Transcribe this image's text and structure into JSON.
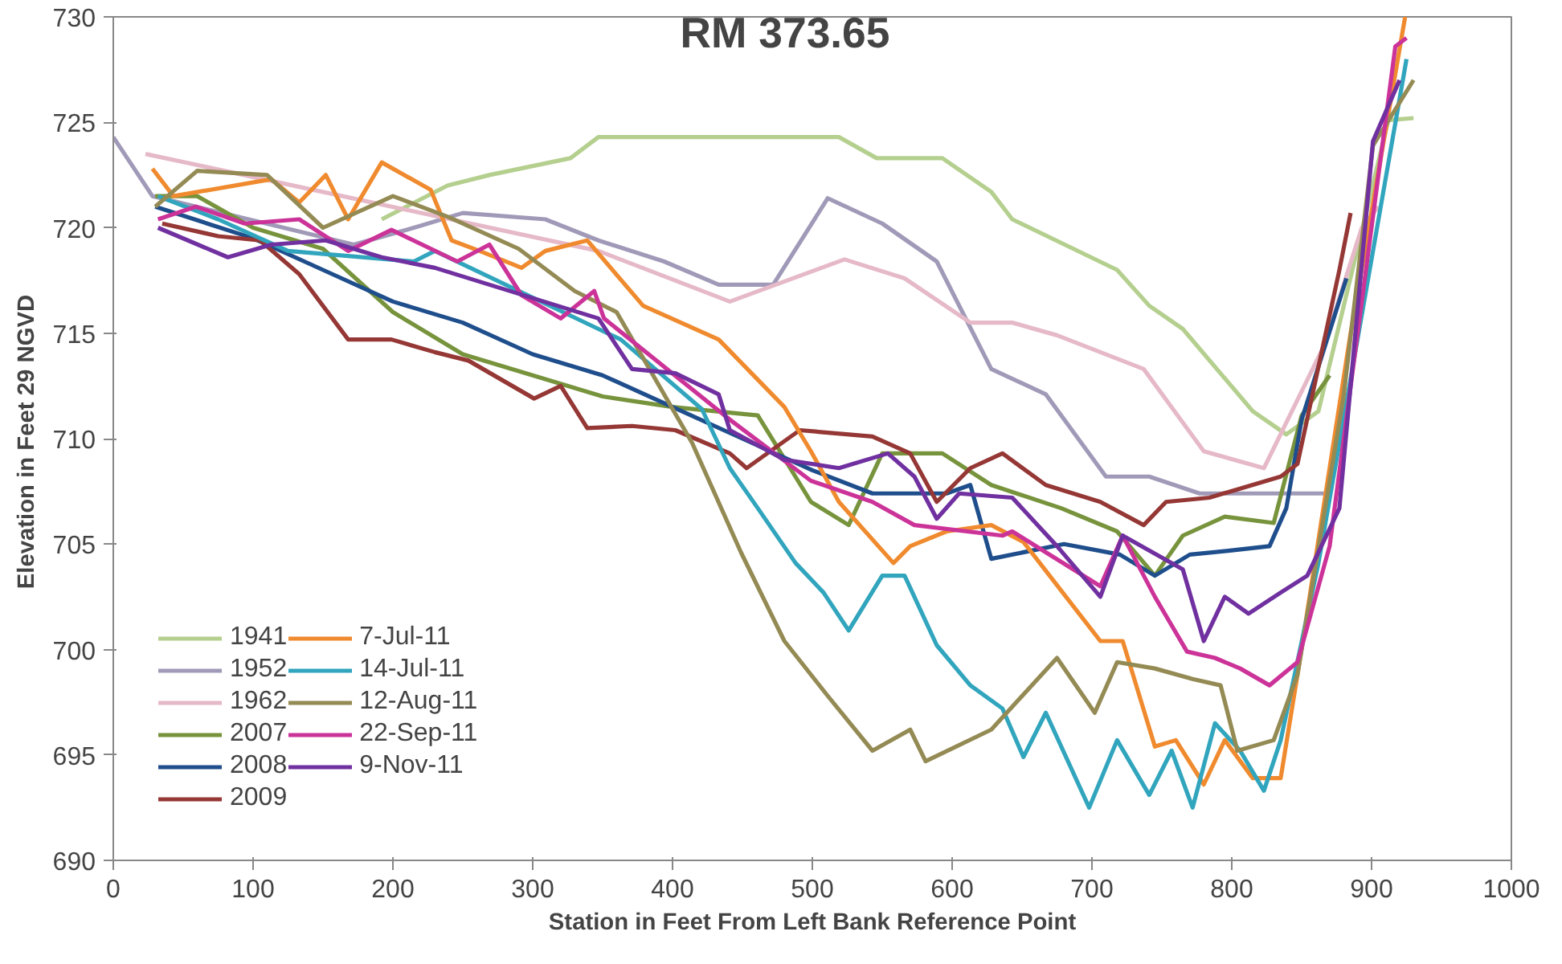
{
  "chart_data": {
    "type": "line",
    "title": "RM 373.65",
    "xlabel": "Station in Feet From Left Bank Reference Point",
    "ylabel": "Elevation in Feet  29 NGVD",
    "xlim": [
      0,
      1000
    ],
    "ylim": [
      690,
      730
    ],
    "xticks": [
      0,
      100,
      200,
      300,
      400,
      500,
      600,
      700,
      800,
      900,
      1000
    ],
    "yticks": [
      690,
      695,
      700,
      705,
      710,
      715,
      720,
      725,
      730
    ],
    "grid": false,
    "legend": "bottom left",
    "line_style": "solid",
    "marker": "none",
    "series": [
      {
        "name": "1941",
        "color": "#b4cf8e",
        "x": [
          192,
          239,
          269,
          327,
          347,
          519,
          546,
          593,
          628,
          643,
          718,
          741,
          765,
          815,
          839,
          862,
          912,
          930
        ],
        "values": [
          720.4,
          722,
          722.5,
          723.3,
          724.3,
          724.3,
          723.3,
          723.3,
          721.7,
          720.4,
          718,
          716.3,
          715.2,
          711.3,
          710.2,
          711.3,
          725.1,
          725.2
        ]
      },
      {
        "name": "1952",
        "color": "#a09ab8",
        "x": [
          0,
          28,
          172,
          215,
          250,
          309,
          347,
          394,
          433,
          472,
          511,
          550,
          589,
          628,
          667,
          710,
          741,
          777,
          866
        ],
        "values": [
          724.3,
          721.5,
          719.2,
          720,
          720.7,
          720.4,
          719.4,
          718.4,
          717.3,
          717.3,
          721.4,
          720.2,
          718.4,
          713.3,
          712.1,
          708.2,
          708.2,
          707.4,
          707.4
        ]
      },
      {
        "name": "1962",
        "color": "#e6b9c8",
        "x": [
          23,
          347,
          441,
          523,
          566,
          613,
          643,
          675,
          737,
          780,
          823,
          866,
          893,
          905
        ],
        "values": [
          723.5,
          718.9,
          716.5,
          718.5,
          717.6,
          715.5,
          715.5,
          714.9,
          713.3,
          709.4,
          708.6,
          714.4,
          720,
          721
        ]
      },
      {
        "name": "2007",
        "color": "#77933c",
        "x": [
          30,
          60,
          100,
          150,
          200,
          250,
          300,
          350,
          400,
          461,
          499,
          526,
          550,
          593,
          628,
          678,
          718,
          745,
          765,
          795,
          830,
          850,
          870
        ],
        "values": [
          721.5,
          721.5,
          720,
          719,
          716,
          714,
          713,
          712,
          711.5,
          711.1,
          707,
          705.9,
          709.3,
          709.3,
          707.8,
          706.7,
          705.6,
          703.5,
          705.4,
          706.3,
          706,
          711.1,
          713
        ]
      },
      {
        "name": "2008",
        "color": "#1f4e8c",
        "x": [
          30,
          100,
          150,
          200,
          250,
          300,
          350,
          400,
          450,
          500,
          543,
          596,
          613,
          628,
          680,
          720,
          745,
          770,
          800,
          827,
          839,
          850,
          882
        ],
        "values": [
          721,
          719.5,
          718,
          716.5,
          715.5,
          714,
          713,
          711.5,
          710,
          708.5,
          707.4,
          707.4,
          707.8,
          704.3,
          705,
          704.5,
          703.5,
          704.5,
          704.7,
          704.9,
          706.7,
          710.9,
          717.6
        ]
      },
      {
        "name": "2009",
        "color": "#953735",
        "x": [
          35,
          75,
          105,
          133,
          168,
          199,
          230,
          254,
          301,
          320,
          339,
          371,
          402,
          441,
          453,
          491,
          543,
          570,
          589,
          613,
          636,
          667,
          706,
          737,
          753,
          784,
          835,
          847,
          877,
          885
        ],
        "values": [
          720.2,
          719.6,
          719.4,
          717.8,
          714.7,
          714.7,
          714.1,
          713.7,
          711.9,
          712.5,
          710.5,
          710.6,
          710.4,
          709.3,
          708.6,
          710.4,
          710.1,
          709.3,
          707,
          708.6,
          709.3,
          707.8,
          707,
          705.9,
          707,
          707.2,
          708.2,
          708.8,
          718,
          720.7
        ]
      },
      {
        "name": "7-Jul-11",
        "color": "#f08a2e",
        "x": [
          28,
          43,
          113,
          133,
          152,
          168,
          192,
          227,
          242,
          262,
          292,
          309,
          339,
          379,
          433,
          480,
          499,
          519,
          558,
          570,
          596,
          628,
          651,
          706,
          722,
          745,
          760,
          780,
          795,
          815,
          835,
          847,
          885,
          924
        ],
        "values": [
          722.8,
          721.5,
          722.3,
          721.2,
          722.5,
          720.4,
          723.1,
          721.8,
          719.4,
          718.9,
          718.1,
          718.9,
          719.4,
          716.3,
          714.7,
          711.5,
          709.4,
          707,
          704.1,
          704.9,
          705.6,
          705.9,
          705.1,
          700.4,
          700.4,
          695.4,
          695.7,
          693.6,
          695.7,
          693.9,
          693.9,
          698.8,
          715,
          730
        ]
      },
      {
        "name": "14-Jul-11",
        "color": "#31a5bd",
        "x": [
          32,
          75,
          125,
          215,
          230,
          347,
          363,
          421,
          441,
          461,
          488,
          508,
          526,
          550,
          566,
          589,
          613,
          636,
          651,
          667,
          698,
          718,
          741,
          757,
          772,
          788,
          806,
          823,
          835,
          862,
          925
        ],
        "values": [
          721.5,
          720.4,
          718.9,
          718.4,
          718.9,
          715.2,
          714.7,
          711.4,
          708.6,
          706.7,
          704.1,
          702.7,
          700.9,
          703.5,
          703.5,
          700.2,
          698.3,
          697.2,
          694.9,
          697,
          692.5,
          695.7,
          693.1,
          695.2,
          692.5,
          696.5,
          695.2,
          693.3,
          695.7,
          704.1,
          728
        ]
      },
      {
        "name": "12-Aug-11",
        "color": "#948a54",
        "x": [
          30,
          60,
          110,
          150,
          200,
          240,
          290,
          330,
          360,
          414,
          449,
          480,
          511,
          543,
          570,
          581,
          628,
          675,
          702,
          718,
          745,
          772,
          792,
          804,
          830,
          847,
          880,
          901,
          930
        ],
        "values": [
          721,
          722.7,
          722.5,
          720,
          721.5,
          720.5,
          719,
          717,
          716,
          709.8,
          704.6,
          700.4,
          697.8,
          695.2,
          696.2,
          694.7,
          696.2,
          699.6,
          697,
          699.4,
          699.1,
          698.6,
          698.3,
          695.2,
          695.7,
          698.8,
          712,
          723.9,
          727
        ]
      },
      {
        "name": "22-Sep-11",
        "color": "#cc3399",
        "x": [
          32,
          59,
          94,
          133,
          168,
          199,
          246,
          269,
          292,
          320,
          344,
          351,
          441,
          499,
          543,
          573,
          636,
          643,
          706,
          722,
          745,
          768,
          788,
          806,
          827,
          847,
          870,
          917,
          925
        ],
        "values": [
          720.4,
          721,
          720.2,
          720.4,
          718.9,
          719.9,
          718.4,
          719.2,
          716.8,
          715.7,
          717,
          715.7,
          710.9,
          708,
          707,
          705.9,
          705.4,
          705.6,
          703,
          705.4,
          702.5,
          699.9,
          699.6,
          699.1,
          698.3,
          699.4,
          704.9,
          728.6,
          729
        ]
      },
      {
        "name": "9-Nov-11",
        "color": "#7030a0",
        "x": [
          32,
          82,
          113,
          152,
          192,
          230,
          269,
          347,
          371,
          402,
          433,
          441,
          480,
          519,
          554,
          573,
          589,
          605,
          643,
          675,
          706,
          722,
          765,
          780,
          795,
          812,
          835,
          854,
          877,
          901,
          920
        ],
        "values": [
          720,
          718.6,
          719.2,
          719.4,
          718.6,
          718.1,
          717.3,
          715.7,
          713.3,
          713.1,
          712.1,
          710.4,
          709,
          708.6,
          709.3,
          708.2,
          706.2,
          707.4,
          707.2,
          704.9,
          702.5,
          705.4,
          703.8,
          700.4,
          702.5,
          701.7,
          702.7,
          703.5,
          706.7,
          724.1,
          727
        ]
      }
    ]
  }
}
